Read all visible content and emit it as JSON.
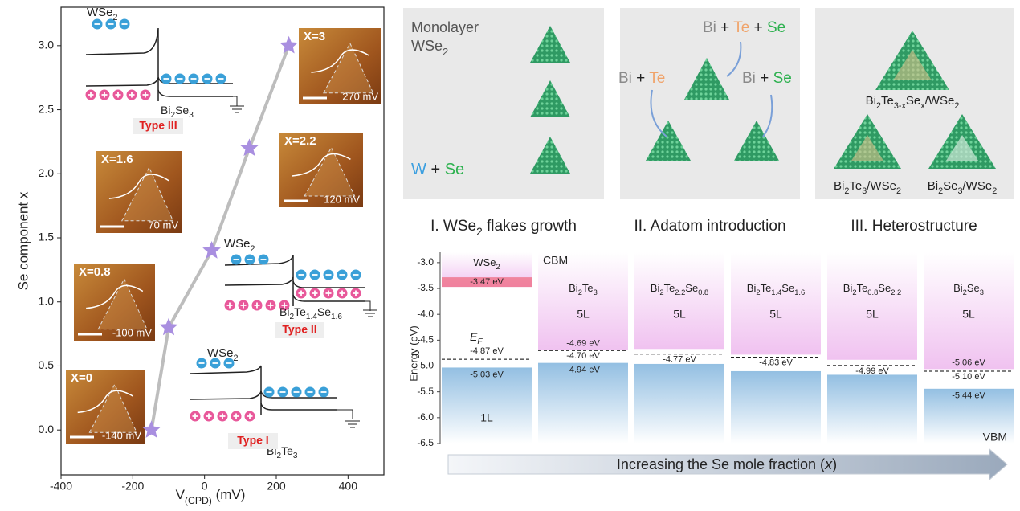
{
  "chart_data": [
    {
      "type": "scatter",
      "x_label": [
        "V",
        "(CPD)",
        " (mV)"
      ],
      "y_label": "Se component x",
      "x": [
        -148,
        -100,
        20,
        125,
        235
      ],
      "values": [
        0,
        0.8,
        1.4,
        2.2,
        3.0
      ],
      "color": "#a98fe0",
      "line_color": "#bdbdbd",
      "xlim": [
        -400,
        500
      ],
      "ylim": [
        -0.35,
        3.3
      ],
      "xticks": [
        -400,
        -200,
        0,
        200,
        400
      ],
      "yticks": [
        {
          "value": 0,
          "label": "0.0"
        },
        0.5,
        {
          "value": 1,
          "label": "1.0"
        },
        1.5,
        {
          "value": 2,
          "label": "2.0"
        },
        2.5,
        {
          "value": 3,
          "label": "3.0"
        }
      ]
    },
    {
      "type": "band",
      "y_label": "Energy (eV)",
      "categories": [
        [
          "WSe",
          "2"
        ],
        [
          "Bi",
          "2",
          "Te",
          "3"
        ],
        [
          "Bi",
          "2",
          "Te",
          "2.2",
          "Se",
          "0.8"
        ],
        [
          "Bi",
          "2",
          "Te",
          "1.4",
          "Se",
          "1.6"
        ],
        [
          "Bi",
          "2",
          "Te",
          "0.8",
          "Se",
          "2.2"
        ],
        [
          "Bi",
          "2",
          "Se",
          "3"
        ]
      ],
      "layers": [
        "1L",
        "5L",
        "5L",
        "5L",
        "5L",
        "5L"
      ],
      "series": [
        {
          "name": "CBM",
          "color": "#f0c2f0",
          "accent": "#ef6b82",
          "values": [
            -3.47,
            -4.69,
            -4.67,
            -4.78,
            -4.88,
            -5.06
          ],
          "value_labels": [
            "-3.47 eV",
            "-4.69 eV",
            null,
            null,
            null,
            "-5.06 eV"
          ]
        },
        {
          "name": [
            "E",
            "F"
          ],
          "color": "#000000",
          "values": [
            -4.87,
            -4.7,
            -4.77,
            -4.83,
            -4.99,
            -5.1
          ],
          "value_labels": [
            "-4.87 eV",
            "-4.70 eV",
            "-4.77 eV",
            "-4.83 eV",
            "-4.99 eV",
            "-5.10 eV"
          ]
        },
        {
          "name": "VBM",
          "color": "#93bfe2",
          "values": [
            -5.03,
            -4.94,
            -4.96,
            -5.1,
            -5.17,
            -5.44
          ],
          "value_labels": [
            "-5.03 eV",
            "-4.94 eV",
            null,
            null,
            null,
            "-5.44 eV"
          ]
        }
      ],
      "ylim": [
        -6.5,
        -2.8
      ],
      "yticks": [
        {
          "value": -3,
          "label": "-3.0"
        },
        -3.5,
        {
          "value": -4,
          "label": "-4.0"
        },
        -4.5,
        {
          "value": -5,
          "label": "-5.0"
        },
        -5.5,
        {
          "value": -6,
          "label": "-6.0"
        },
        -6.5
      ],
      "x_label": [
        "Increasing the Se mole fraction (",
        "x",
        ")"
      ]
    }
  ],
  "afm_insets": [
    {
      "label": "X=3",
      "scale": "270 mV"
    },
    {
      "label": "X=2.2",
      "scale": "120 mV"
    },
    {
      "label": "X=1.6",
      "scale": "70 mV"
    },
    {
      "label": "X=0.8",
      "scale": "-100 mV"
    },
    {
      "label": "X=0",
      "scale": "-140 mV"
    }
  ],
  "band_insets": [
    {
      "top": [
        "WSe",
        "2"
      ],
      "bottom": [
        "Bi",
        "2",
        "Se",
        "3"
      ],
      "type": "Type III"
    },
    {
      "top": [
        "WSe",
        "2"
      ],
      "bottom": [
        "Bi",
        "2",
        "Te",
        "1.4",
        "Se",
        "1.6"
      ],
      "type": "Type II"
    },
    {
      "top": [
        "WSe",
        "2"
      ],
      "bottom": [
        "Bi",
        "2",
        "Te",
        "3"
      ],
      "type": "Type I"
    }
  ],
  "element_colors": {
    "W": "#3b9fe0",
    "Se": "#2db14f",
    "Te": "#f0a36a",
    "Bi": "#8a8a8a"
  },
  "panels": [
    {
      "title": [
        "I. WSe",
        "2",
        " flakes growth"
      ],
      "line1": "Monolayer",
      "line2": [
        "WSe",
        "2"
      ],
      "species": [
        [
          "W",
          " + ",
          "Se"
        ]
      ]
    },
    {
      "title": [
        "II. Adatom introduction"
      ],
      "species": [
        [
          "Bi",
          " + ",
          "Te",
          " + ",
          "Se"
        ],
        [
          "Bi",
          " + ",
          "Te"
        ],
        [
          "Bi",
          " + ",
          "Se"
        ]
      ]
    },
    {
      "title": [
        "III. Heterostructure"
      ],
      "products": [
        [
          "Bi",
          "2",
          "Te",
          "3-x",
          "Se",
          "x",
          "/WSe",
          "2"
        ],
        [
          "Bi",
          "2",
          "Te",
          "3",
          "/WSe",
          "2"
        ],
        [
          "Bi",
          "2",
          "Se",
          "3",
          "/WSe",
          "2"
        ]
      ]
    }
  ]
}
